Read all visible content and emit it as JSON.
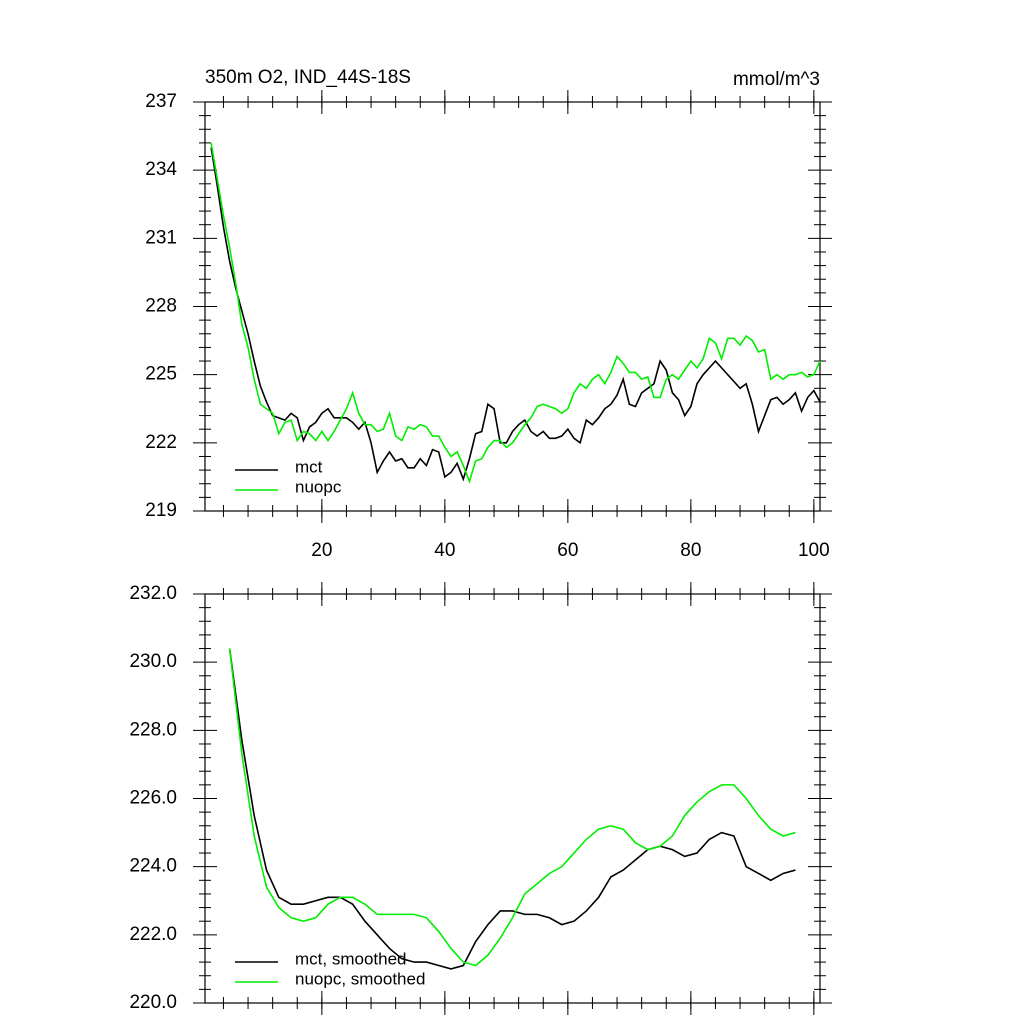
{
  "chart_data": [
    {
      "type": "line",
      "title": "350m O2, IND_44S-18S",
      "subtitle": "mmol/m^3",
      "x": [
        2,
        3,
        4,
        5,
        6,
        7,
        8,
        9,
        10,
        11,
        12,
        13,
        14,
        15,
        16,
        17,
        18,
        19,
        20,
        21,
        22,
        23,
        24,
        25,
        26,
        27,
        28,
        29,
        30,
        31,
        32,
        33,
        34,
        35,
        36,
        37,
        38,
        39,
        40,
        41,
        42,
        43,
        44,
        45,
        46,
        47,
        48,
        49,
        50,
        51,
        52,
        53,
        54,
        55,
        56,
        57,
        58,
        59,
        60,
        61,
        62,
        63,
        64,
        65,
        66,
        67,
        68,
        69,
        70,
        71,
        72,
        73,
        74,
        75,
        76,
        77,
        78,
        79,
        80,
        81,
        82,
        83,
        84,
        85,
        86,
        87,
        88,
        89,
        90,
        91,
        92,
        93,
        94,
        95,
        96,
        97,
        98,
        99,
        100,
        101
      ],
      "series": [
        {
          "name": "mct",
          "color": "#000000",
          "values": [
            235.0,
            233.3,
            231.5,
            230.0,
            228.8,
            227.8,
            226.8,
            225.6,
            224.5,
            223.8,
            223.2,
            223.1,
            223.0,
            223.3,
            223.1,
            222.1,
            222.7,
            222.9,
            223.3,
            223.5,
            223.1,
            223.1,
            223.1,
            222.9,
            222.6,
            222.9,
            222.0,
            220.7,
            221.2,
            221.6,
            221.2,
            221.3,
            220.9,
            220.9,
            221.3,
            221.0,
            221.7,
            221.6,
            220.5,
            220.7,
            221.1,
            220.4,
            221.3,
            222.4,
            222.5,
            223.7,
            223.5,
            222.0,
            222.0,
            222.5,
            222.8,
            223.0,
            222.5,
            222.3,
            222.5,
            222.2,
            222.2,
            222.3,
            222.6,
            222.2,
            222.0,
            223.0,
            222.8,
            223.1,
            223.5,
            223.7,
            224.1,
            224.8,
            223.7,
            223.6,
            224.2,
            224.4,
            224.6,
            225.6,
            225.2,
            224.2,
            223.9,
            223.2,
            223.6,
            224.6,
            225.0,
            225.3,
            225.6,
            225.3,
            225.0,
            224.7,
            224.4,
            224.6,
            223.7,
            222.5,
            223.2,
            223.9,
            224.0,
            223.7,
            223.9,
            224.2,
            223.4,
            224.0,
            224.3,
            223.8
          ]
        },
        {
          "name": "nuopc",
          "color": "#00ee00",
          "values": [
            235.2,
            233.6,
            232.0,
            230.6,
            229.0,
            227.2,
            226.2,
            224.8,
            223.7,
            223.5,
            223.3,
            222.4,
            222.9,
            223.0,
            222.1,
            222.5,
            222.4,
            222.1,
            222.5,
            222.1,
            222.5,
            223.0,
            223.5,
            224.2,
            223.3,
            222.8,
            222.8,
            222.5,
            222.6,
            223.3,
            222.3,
            222.1,
            222.7,
            222.6,
            222.8,
            222.7,
            222.3,
            222.3,
            221.8,
            221.4,
            221.6,
            221.0,
            220.3,
            221.2,
            221.3,
            221.8,
            222.1,
            222.1,
            221.8,
            222.0,
            222.4,
            222.8,
            223.1,
            223.6,
            223.7,
            223.6,
            223.5,
            223.3,
            223.5,
            224.2,
            224.6,
            224.4,
            224.8,
            225.0,
            224.6,
            225.1,
            225.8,
            225.5,
            225.1,
            225.1,
            224.8,
            224.9,
            224.0,
            224.0,
            224.8,
            225.0,
            224.8,
            225.2,
            225.6,
            225.3,
            225.7,
            226.6,
            226.4,
            225.7,
            226.6,
            226.6,
            226.3,
            226.7,
            226.5,
            226.0,
            226.1,
            224.8,
            225.0,
            224.8,
            225.0,
            225.0,
            225.1,
            224.9,
            225.0,
            225.6
          ]
        }
      ],
      "xlim": [
        1,
        101
      ],
      "xticks": [
        20,
        40,
        60,
        80,
        100
      ],
      "xtick_labels": true,
      "ylim": [
        219,
        237
      ],
      "yticks": [
        219,
        222,
        225,
        228,
        231,
        234,
        237
      ],
      "legend": "lower left"
    },
    {
      "type": "line",
      "x": [
        5,
        7,
        9,
        11,
        13,
        15,
        17,
        19,
        21,
        23,
        25,
        27,
        29,
        31,
        33,
        35,
        37,
        39,
        41,
        43,
        45,
        47,
        49,
        51,
        53,
        55,
        57,
        59,
        61,
        63,
        65,
        67,
        69,
        71,
        73,
        75,
        77,
        79,
        81,
        83,
        85,
        87,
        89,
        91,
        93,
        95,
        97
      ],
      "series": [
        {
          "name": "mct, smoothed",
          "color": "#000000",
          "values": [
            230.4,
            227.7,
            225.5,
            223.9,
            223.1,
            222.9,
            222.9,
            223.0,
            223.1,
            223.1,
            222.9,
            222.4,
            222.0,
            221.6,
            221.3,
            221.2,
            221.2,
            221.1,
            221.0,
            221.1,
            221.8,
            222.3,
            222.7,
            222.7,
            222.6,
            222.6,
            222.5,
            222.3,
            222.4,
            222.7,
            223.1,
            223.7,
            223.9,
            224.2,
            224.5,
            224.6,
            224.5,
            224.3,
            224.4,
            224.8,
            225.0,
            224.9,
            224.0,
            223.8,
            223.6,
            223.8,
            223.9
          ]
        },
        {
          "name": "nuopc, smoothed",
          "color": "#00ee00",
          "values": [
            230.4,
            227.3,
            224.9,
            223.4,
            222.8,
            222.5,
            222.4,
            222.5,
            222.9,
            223.1,
            223.1,
            222.9,
            222.6,
            222.6,
            222.6,
            222.6,
            222.5,
            222.1,
            221.6,
            221.2,
            221.1,
            221.4,
            221.9,
            222.5,
            223.2,
            223.5,
            223.8,
            224.0,
            224.4,
            224.8,
            225.1,
            225.2,
            225.1,
            224.7,
            224.5,
            224.6,
            224.9,
            225.5,
            225.9,
            226.2,
            226.4,
            226.4,
            226.0,
            225.5,
            225.1,
            224.9,
            225.0
          ]
        }
      ],
      "xlim": [
        1,
        101
      ],
      "xticks": [
        20,
        40,
        60,
        80,
        100
      ],
      "xtick_labels": false,
      "ylim": [
        220,
        232
      ],
      "yticks": [
        {
          "value": 220,
          "label": "220.0"
        },
        {
          "value": 222,
          "label": "222.0"
        },
        {
          "value": 224,
          "label": "224.0"
        },
        {
          "value": 226,
          "label": "226.0"
        },
        {
          "value": 228,
          "label": "228.0"
        },
        {
          "value": 230,
          "label": "230.0"
        },
        {
          "value": 232,
          "label": "232.0"
        }
      ],
      "legend": "lower left"
    }
  ]
}
